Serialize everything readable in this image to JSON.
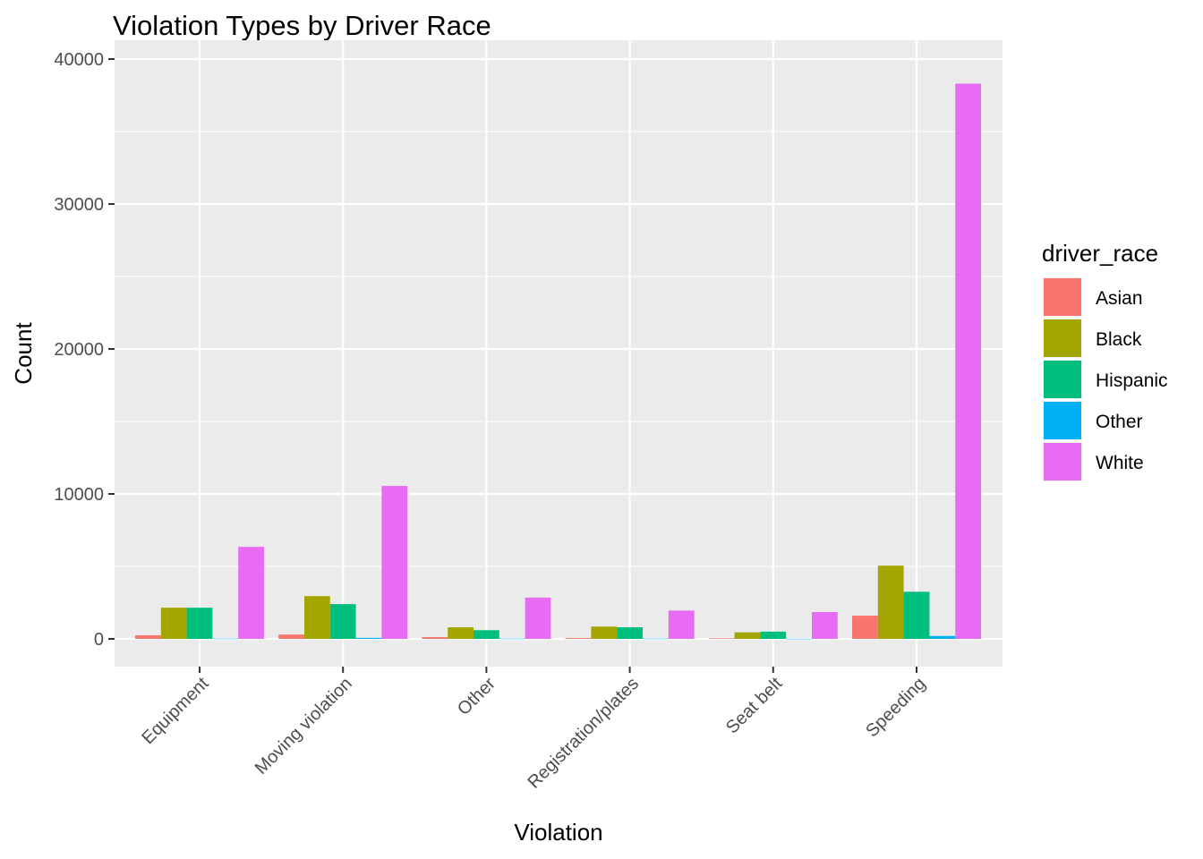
{
  "chart_data": {
    "type": "bar",
    "title": "Violation Types by Driver Race",
    "xlabel": "Violation",
    "ylabel": "Count",
    "ylim": [
      -1900,
      40250
    ],
    "yticks": [
      0,
      10000,
      20000,
      30000,
      40000
    ],
    "ytick_labels": [
      "0",
      "10000",
      "20000",
      "30000",
      "40000"
    ],
    "categories": [
      "Equipment",
      "Moving violation",
      "Other",
      "Registration/plates",
      "Seat belt",
      "Speeding"
    ],
    "legend_title": "driver_race",
    "legend_position": "right",
    "grid": true,
    "series": [
      {
        "name": "Asian",
        "color": "#F8766D",
        "values": [
          250,
          300,
          120,
          60,
          40,
          1600
        ]
      },
      {
        "name": "Black",
        "color": "#A3A500",
        "values": [
          2150,
          2950,
          800,
          850,
          450,
          5050
        ]
      },
      {
        "name": "Hispanic",
        "color": "#00BF7D",
        "values": [
          2150,
          2400,
          600,
          800,
          500,
          3250
        ]
      },
      {
        "name": "Other",
        "color": "#00B0F6",
        "values": [
          20,
          70,
          20,
          20,
          10,
          200
        ]
      },
      {
        "name": "White",
        "color": "#E76BF3",
        "values": [
          6350,
          10550,
          2850,
          1950,
          1850,
          38300
        ]
      }
    ]
  }
}
